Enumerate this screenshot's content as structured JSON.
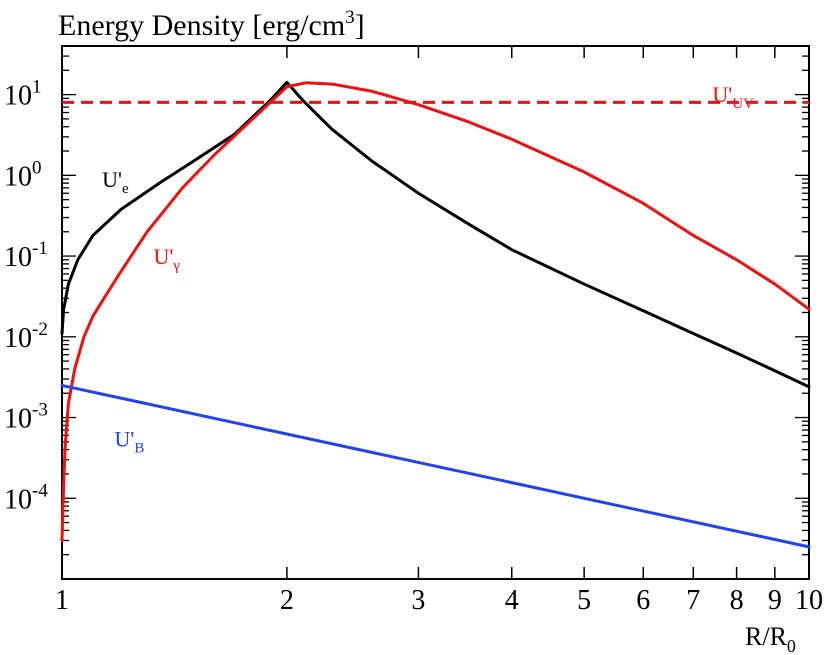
{
  "chart_data": {
    "type": "line",
    "title": "Energy Density [erg/cm",
    "title_sup": "3",
    "title_end": "]",
    "xlabel": "R/R",
    "xlabel_sub": "0",
    "x_scale": "log",
    "y_scale": "log",
    "xlim": [
      1,
      10
    ],
    "ylim": [
      1e-05,
      40
    ],
    "x_ticks": [
      1,
      2,
      3,
      4,
      5,
      6,
      7,
      8,
      9,
      10
    ],
    "x_tick_labels": [
      "1",
      "2",
      "3",
      "4",
      "5",
      "6",
      "7",
      "8",
      "9",
      "10"
    ],
    "y_ticks": [
      {
        "value": 10,
        "base": "10",
        "exp": "1"
      },
      {
        "value": 1,
        "base": "10",
        "exp": "0"
      },
      {
        "value": 0.1,
        "base": "10",
        "exp": "-1"
      },
      {
        "value": 0.01,
        "base": "10",
        "exp": "-2"
      },
      {
        "value": 0.001,
        "base": "10",
        "exp": "-3"
      },
      {
        "value": 0.0001,
        "base": "10",
        "exp": "-4"
      }
    ],
    "series": [
      {
        "name": "U'e",
        "label_main": "U'",
        "label_sub": "e",
        "color": "#000000",
        "dash": false,
        "x": [
          1.0,
          1.005,
          1.02,
          1.05,
          1.1,
          1.2,
          1.35,
          1.5,
          1.7,
          1.9,
          1.95,
          2.0,
          2.1,
          2.3,
          2.6,
          3.0,
          3.5,
          4.0,
          5.0,
          6.0,
          7.0,
          8.0,
          9.0,
          10.0
        ],
        "y": [
          0.011,
          0.022,
          0.045,
          0.09,
          0.18,
          0.38,
          0.8,
          1.5,
          3.2,
          8.5,
          11,
          14.2,
          8.5,
          3.7,
          1.5,
          0.6,
          0.25,
          0.12,
          0.045,
          0.021,
          0.011,
          0.0063,
          0.0038,
          0.0024
        ]
      },
      {
        "name": "U'γ",
        "label_main": "U'",
        "label_sub": "γ",
        "color": "#ee1111",
        "dash": false,
        "x": [
          1.0,
          1.005,
          1.01,
          1.02,
          1.04,
          1.07,
          1.1,
          1.15,
          1.2,
          1.3,
          1.45,
          1.6,
          1.8,
          2.0,
          2.12,
          2.3,
          2.6,
          3.0,
          3.5,
          4.0,
          5.0,
          6.0,
          7.0,
          8.0,
          9.0,
          10.0
        ],
        "y": [
          3e-05,
          0.00015,
          0.00045,
          0.0015,
          0.004,
          0.01,
          0.018,
          0.035,
          0.065,
          0.2,
          0.7,
          1.8,
          5.0,
          12.5,
          14.0,
          13.5,
          11.0,
          7.5,
          4.6,
          2.8,
          1.1,
          0.45,
          0.18,
          0.09,
          0.045,
          0.022
        ]
      },
      {
        "name": "U'UV",
        "label_main": "U'",
        "label_sub": "UV",
        "color": "#ee1111",
        "dash": true,
        "x": [
          1.0,
          10.0
        ],
        "y": [
          8.0,
          8.0
        ]
      },
      {
        "name": "U'B",
        "label_main": "U'",
        "label_sub": "B",
        "color": "#2244ee",
        "dash": false,
        "x": [
          1.0,
          10.0
        ],
        "y": [
          0.0025,
          2.5e-05
        ]
      }
    ]
  }
}
